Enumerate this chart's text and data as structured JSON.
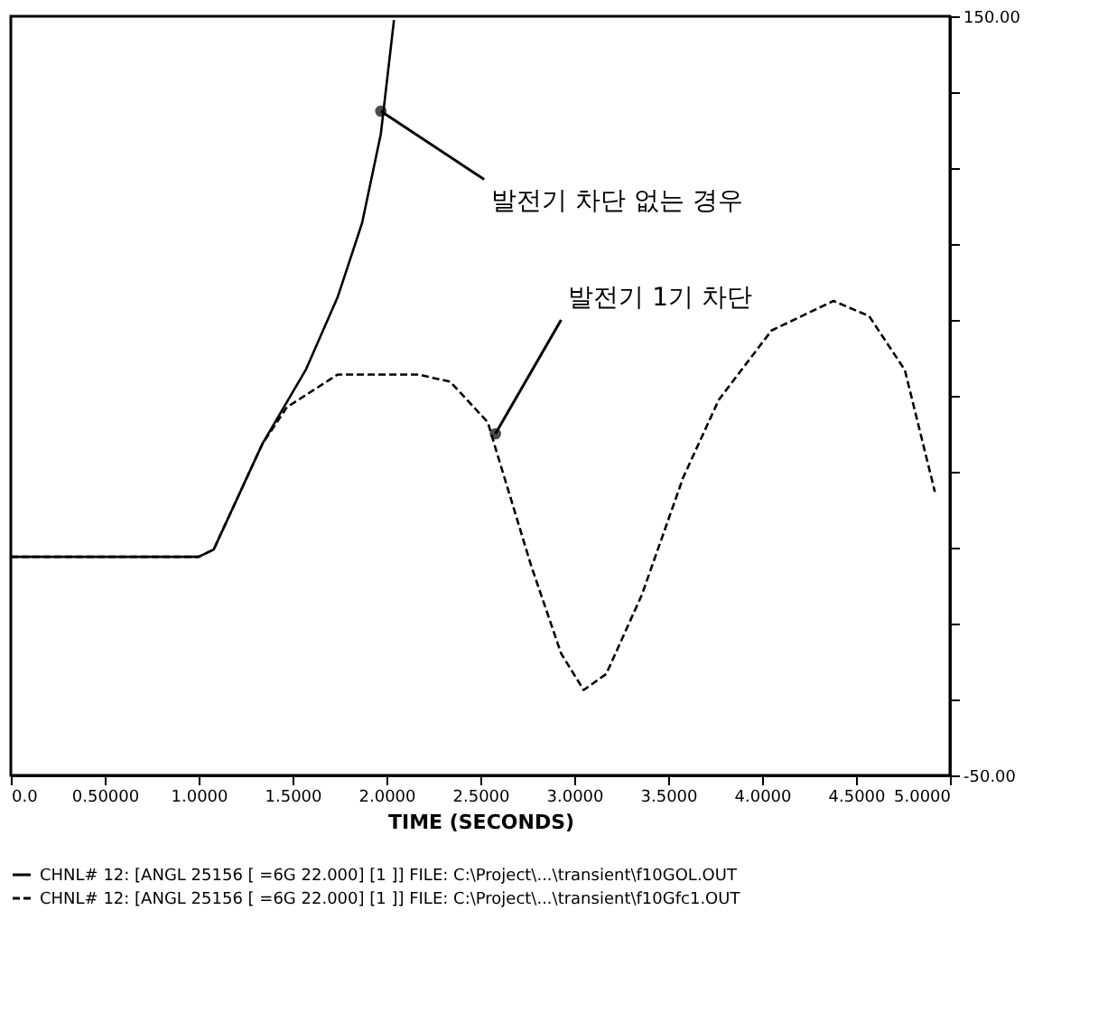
{
  "chart_data": {
    "type": "line",
    "xlabel": "TIME (SECONDS)",
    "xlim": [
      0,
      5
    ],
    "xticks": [
      {
        "value": 0,
        "label": "0.0"
      },
      {
        "value": 0.5,
        "label": "0.50000"
      },
      {
        "value": 1,
        "label": "1.0000"
      },
      {
        "value": 1.5,
        "label": "1.5000"
      },
      {
        "value": 2,
        "label": "2.0000"
      },
      {
        "value": 2.5,
        "label": "2.5000"
      },
      {
        "value": 3,
        "label": "3.0000"
      },
      {
        "value": 3.5,
        "label": "3.5000"
      },
      {
        "value": 4,
        "label": "4.0000"
      },
      {
        "value": 4.5,
        "label": "4.5000"
      },
      {
        "value": 5,
        "label": "5.0000"
      }
    ],
    "ylim": [
      -50,
      150
    ],
    "yticks": [
      {
        "value": -50,
        "label": "-50.00"
      },
      {
        "value": -30,
        "label": null
      },
      {
        "value": -10,
        "label": null
      },
      {
        "value": 10,
        "label": null
      },
      {
        "value": 30,
        "label": null
      },
      {
        "value": 50,
        "label": null
      },
      {
        "value": 70,
        "label": null
      },
      {
        "value": 90,
        "label": null
      },
      {
        "value": 110,
        "label": null
      },
      {
        "value": 130,
        "label": null
      },
      {
        "value": 150,
        "label": "150.00"
      }
    ],
    "grid": false,
    "legend": "bottom",
    "series": [
      {
        "name": "CHNL# 12: [ANGL 25156 [ =6G 22.000] [1 ]]  FILE: C:\\Project\\...\\transient\\f10GOL.OUT",
        "color": "#000000",
        "line_style": "solid",
        "x": [
          0,
          0.9,
          1.0,
          1.08,
          1.34,
          1.57,
          1.74,
          1.87,
          1.97,
          2.04
        ],
        "values": [
          7.6,
          7.6,
          7.6,
          9.5,
          37.4,
          56.8,
          76,
          95.5,
          119,
          149
        ]
      },
      {
        "name": "CHNL# 12: [ANGL 25156 [ =6G 22.000] [1 ]]  FILE: C:\\Project\\...\\transient\\f10Gfc1.OUT",
        "color": "#000000",
        "line_style": "dashed",
        "x": [
          0,
          0.9,
          1.0,
          1.08,
          1.34,
          1.47,
          1.74,
          2.17,
          2.34,
          2.54,
          2.58,
          2.77,
          2.93,
          3.05,
          3.17,
          3.36,
          3.58,
          3.77,
          4.05,
          4.38,
          4.57,
          4.76,
          4.92
        ],
        "values": [
          7.6,
          7.6,
          7.6,
          9.5,
          37.4,
          47,
          55.6,
          55.6,
          53.7,
          43,
          36.3,
          5.3,
          -17.9,
          -27.5,
          -23.3,
          -2.4,
          28.5,
          49,
          67.2,
          75,
          71,
          56.8,
          24.7
        ]
      }
    ],
    "annotations": [
      {
        "text": "발전기 차단 없는 경우",
        "x": 1.97,
        "y": 125
      },
      {
        "text": "발전기 1기 차단",
        "x": 2.58,
        "y": 40
      }
    ]
  }
}
